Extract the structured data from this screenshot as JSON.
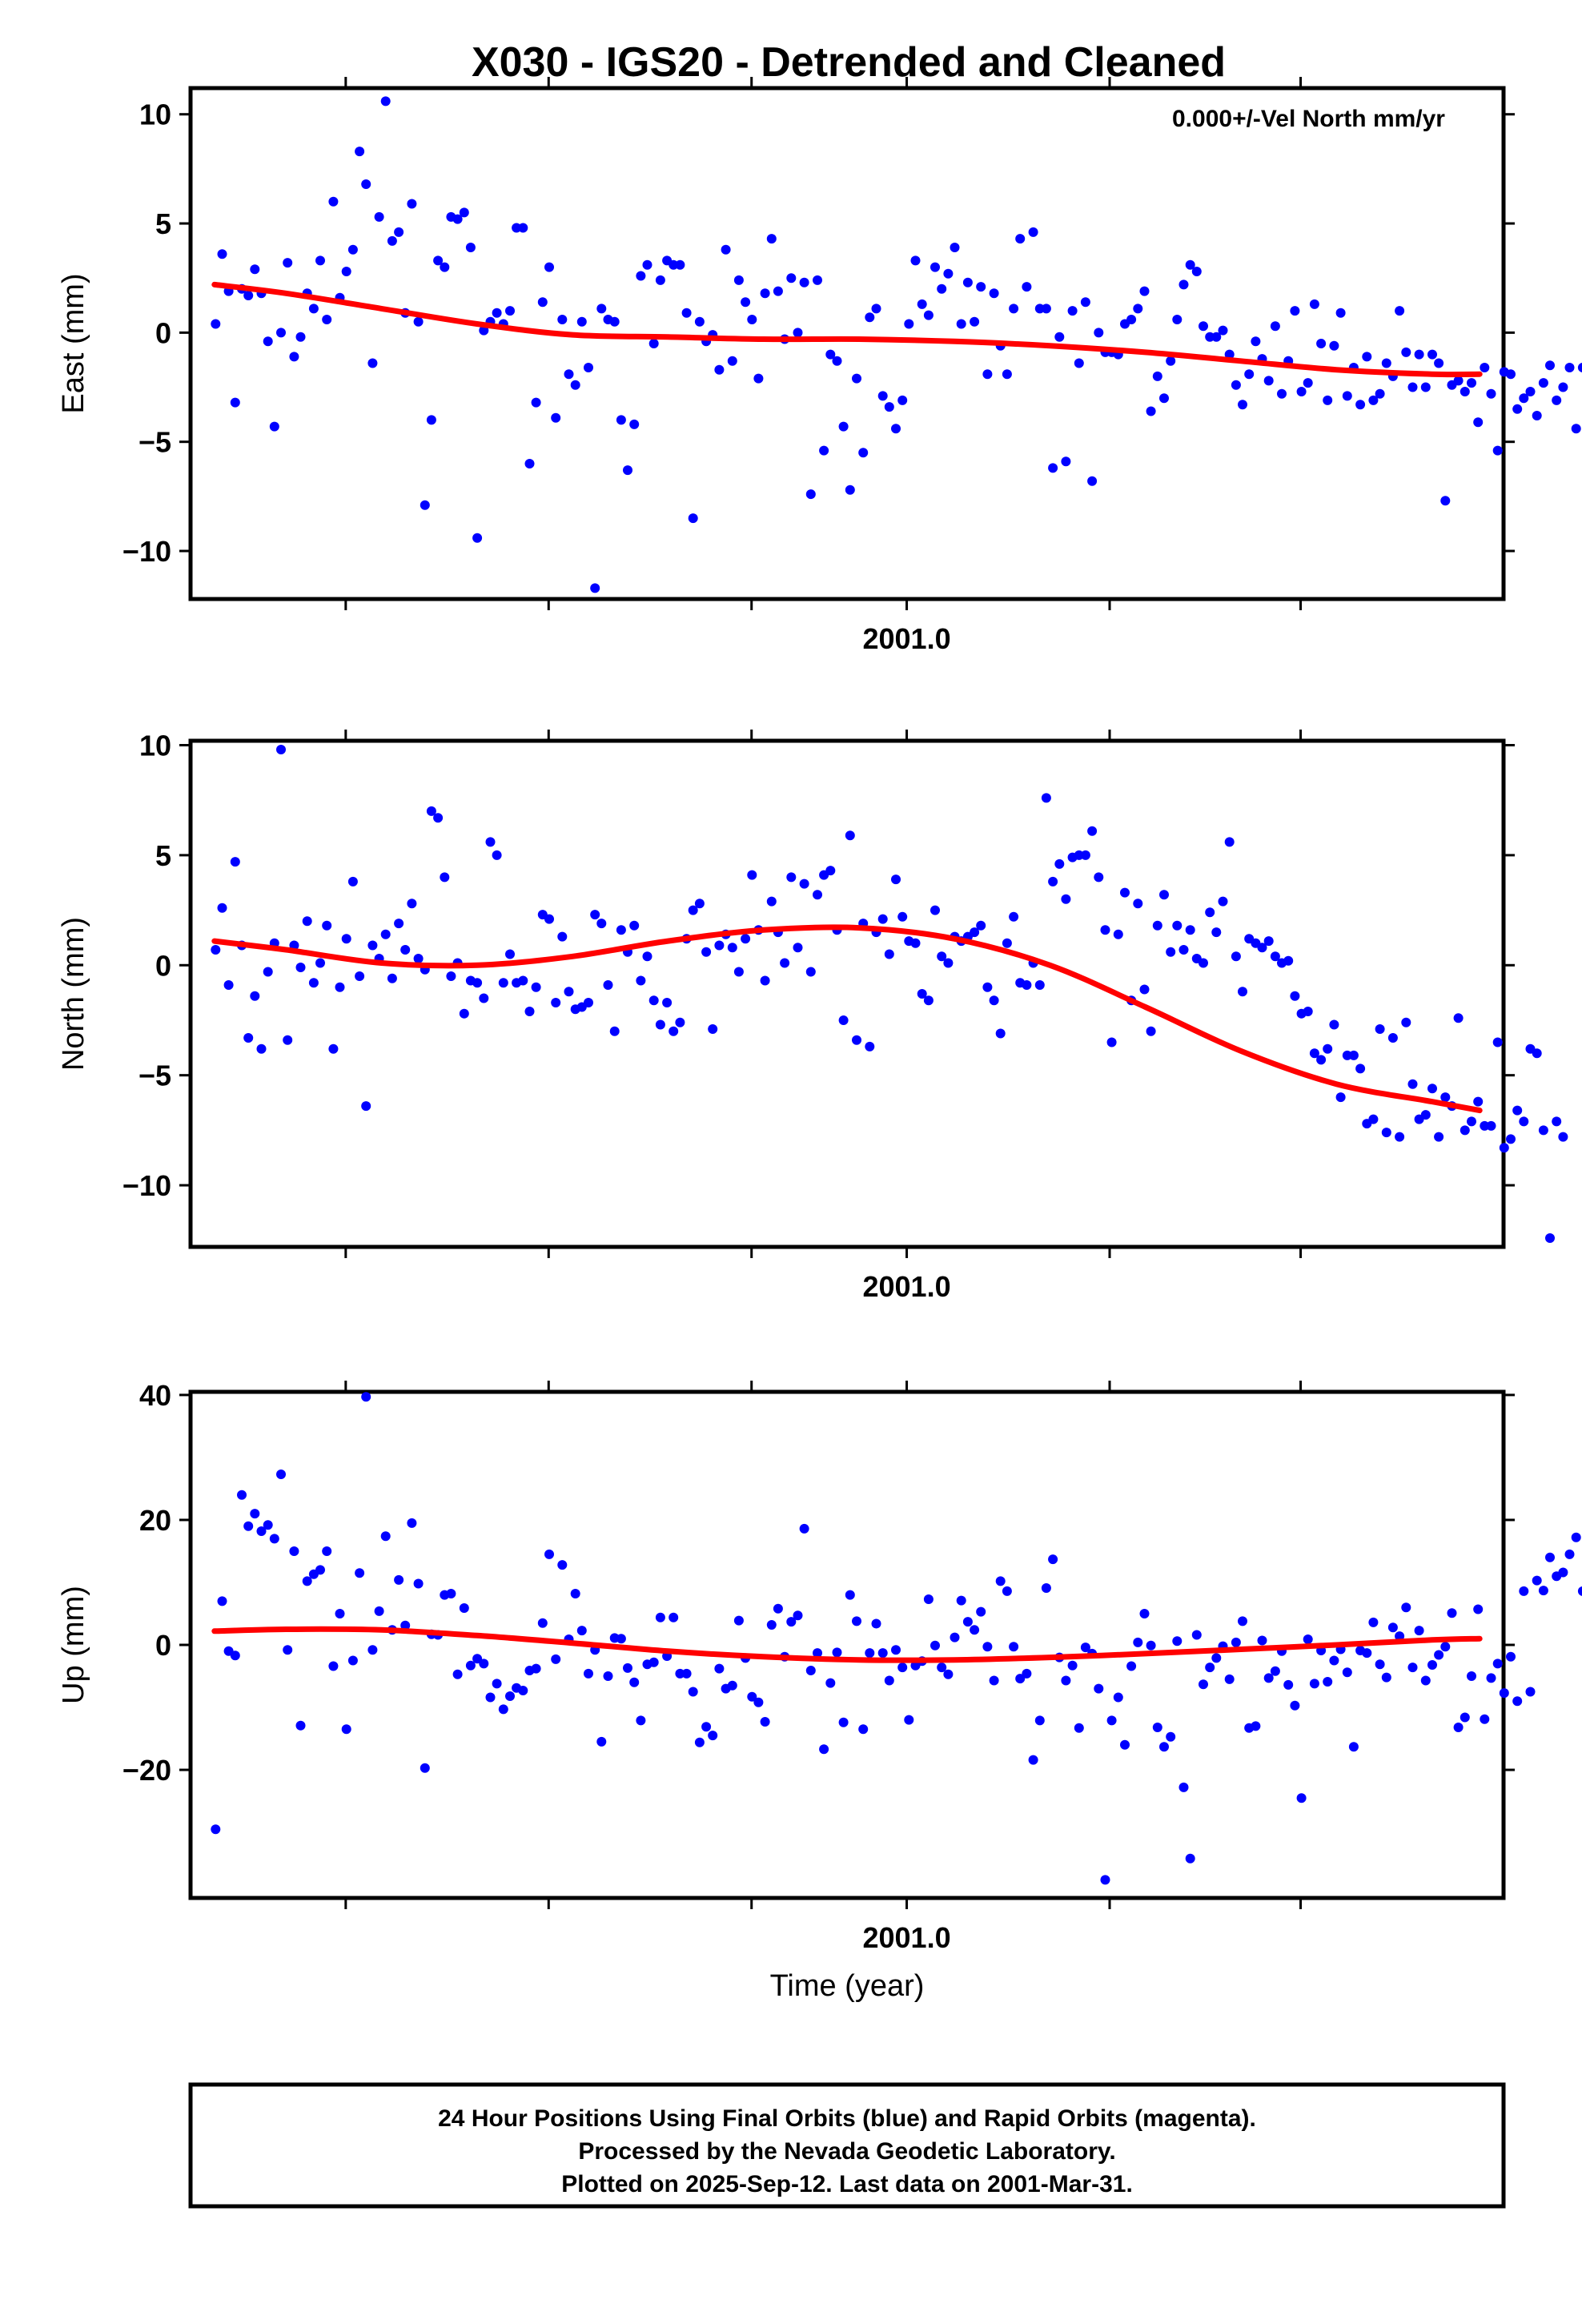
{
  "title": "X030 - IGS20 - Detrended and Cleaned",
  "xlabel": "Time (year)",
  "annotation": "0.000+/-Vel North mm/yr",
  "footer": {
    "line1": "24 Hour Positions Using Final Orbits (blue) and Rapid Orbits (magenta).",
    "line2": "Processed by the Nevada Geodetic Laboratory.",
    "line3": "Plotted on 2025-Sep-12. Last data on 2001-Mar-31."
  },
  "colors": {
    "points": "#0000ff",
    "fit": "#ff0000",
    "frame": "#000000"
  },
  "chart_data": [
    {
      "type": "scatter",
      "ylabel": "East (mm)",
      "xlim": [
        2000.7,
        2001.25
      ],
      "ylim": [
        -12.2,
        11.2
      ],
      "x_tick_labels": [
        {
          "value": 2001.0,
          "label": "2001.0"
        }
      ],
      "x_minor_ticks": [
        2000.765,
        2000.85,
        2000.935,
        2001.0,
        2001.085,
        2001.165
      ],
      "y_ticks": [
        {
          "value": 10,
          "label": "10"
        },
        {
          "value": 5,
          "label": "5"
        },
        {
          "value": 0,
          "label": "0"
        },
        {
          "value": -5,
          "label": "−5"
        },
        {
          "value": -10,
          "label": "−10"
        }
      ],
      "start_x": 2000.7105,
      "step_x": 0.00274,
      "points_y": [
        0.4,
        3.6,
        1.9,
        -3.2,
        2.0,
        1.7,
        2.9,
        1.8,
        -0.4,
        -4.3,
        0.0,
        3.2,
        -1.1,
        -0.2,
        1.8,
        1.1,
        3.3,
        0.6,
        6.0,
        1.6,
        2.8,
        3.8,
        8.3,
        6.8,
        -1.4,
        5.3,
        10.6,
        4.2,
        4.6,
        0.9,
        5.9,
        0.5,
        -7.9,
        -4.0,
        3.3,
        3.0,
        5.3,
        5.2,
        5.5,
        3.9,
        -9.4,
        0.1,
        0.5,
        0.9,
        0.4,
        1.0,
        4.8,
        4.8,
        -6.0,
        -3.2,
        1.4,
        3.0,
        -3.9,
        0.6,
        -1.9,
        -2.4,
        0.5,
        -1.6,
        -11.7,
        1.1,
        0.6,
        0.5,
        -4.0,
        -6.3,
        -4.2,
        2.6,
        3.1,
        -0.5,
        2.4,
        3.3,
        3.1,
        3.1,
        0.9,
        -8.5,
        0.5,
        -0.4,
        -0.1,
        -1.7,
        3.8,
        -1.3,
        2.4,
        1.4,
        0.6,
        -2.1,
        1.8,
        4.3,
        1.9,
        -0.3,
        2.5,
        0.0,
        2.3,
        -7.4,
        2.4,
        -5.4,
        -1.0,
        -1.3,
        -4.3,
        -7.2,
        -2.1,
        -5.5,
        0.7,
        1.1,
        -2.9,
        -3.4,
        -4.4,
        -3.1,
        0.4,
        3.3,
        1.3,
        0.8,
        3.0,
        2.0,
        2.7,
        3.9,
        0.4,
        2.3,
        0.5,
        2.1,
        -1.9,
        1.8,
        -0.6,
        -1.9,
        1.1,
        4.3,
        2.1,
        4.6,
        1.1,
        1.1,
        -6.2,
        -0.2,
        -5.9,
        1.0,
        -1.4,
        1.4,
        -6.8,
        0.0,
        -0.9,
        -0.9,
        -1.0,
        0.4,
        0.6,
        1.1,
        1.9,
        -3.6,
        -2.0,
        -3.0,
        -1.3,
        0.6,
        2.2,
        3.1,
        2.8,
        0.3,
        -0.2,
        -0.2,
        0.1,
        -1.0,
        -2.4,
        -3.3,
        -1.9,
        -0.4,
        -1.2,
        -2.2,
        0.3,
        -2.8,
        -1.3,
        1.0,
        -2.7,
        -2.3,
        1.3,
        -0.5,
        -3.1,
        -0.6,
        0.9,
        -2.9,
        -1.6,
        -3.3,
        -1.1,
        -3.1,
        -2.8,
        -1.4,
        -2.0,
        1.0,
        -0.9,
        -2.5,
        -1.0,
        -2.5,
        -1.0,
        -1.4,
        -7.7,
        -2.4,
        -2.2,
        -2.7,
        -2.3,
        -4.1,
        -1.6,
        -2.8,
        -5.4,
        -1.8,
        -1.9,
        -3.5,
        -3.0,
        -2.7,
        -3.8,
        -2.3,
        -1.5,
        -3.1,
        -2.5,
        -1.6,
        -4.4,
        -1.6,
        -2.1,
        0.1,
        0.3,
        0.8,
        1.4,
        -2.8,
        0.9,
        2.3,
        -0.3,
        -1.3,
        -1.2
      ],
      "fit": {
        "x": [
          2000.71,
          2000.74,
          2000.78,
          2000.82,
          2000.86,
          2000.9,
          2000.94,
          2000.98,
          2001.02,
          2001.06,
          2001.1,
          2001.14,
          2001.18,
          2001.22,
          2001.24
        ],
        "y": [
          2.2,
          1.8,
          1.1,
          0.4,
          -0.1,
          -0.2,
          -0.3,
          -0.3,
          -0.4,
          -0.6,
          -0.9,
          -1.3,
          -1.7,
          -1.9,
          -1.9
        ]
      }
    },
    {
      "type": "scatter",
      "ylabel": "North (mm)",
      "xlim": [
        2000.7,
        2001.25
      ],
      "ylim": [
        -12.8,
        10.2
      ],
      "x_tick_labels": [
        {
          "value": 2001.0,
          "label": "2001.0"
        }
      ],
      "x_minor_ticks": [
        2000.765,
        2000.85,
        2000.935,
        2001.0,
        2001.085,
        2001.165
      ],
      "y_ticks": [
        {
          "value": 10,
          "label": "10"
        },
        {
          "value": 5,
          "label": "5"
        },
        {
          "value": 0,
          "label": "0"
        },
        {
          "value": -5,
          "label": "−5"
        },
        {
          "value": -10,
          "label": "−10"
        }
      ],
      "start_x": 2000.7105,
      "step_x": 0.00274,
      "points_y": [
        0.7,
        2.6,
        -0.9,
        4.7,
        0.9,
        -3.3,
        -1.4,
        -3.8,
        -0.3,
        1.0,
        9.8,
        -3.4,
        0.9,
        -0.1,
        2.0,
        -0.8,
        0.1,
        1.8,
        -3.8,
        -1.0,
        1.2,
        3.8,
        -0.5,
        -6.4,
        0.9,
        0.3,
        1.4,
        -0.6,
        1.9,
        0.7,
        2.8,
        0.3,
        -0.2,
        7.0,
        6.7,
        4.0,
        -0.5,
        0.1,
        -2.2,
        -0.7,
        -0.8,
        -1.5,
        5.6,
        5.0,
        -0.8,
        0.5,
        -0.8,
        -0.7,
        -2.1,
        -1.0,
        2.3,
        2.1,
        -1.7,
        1.3,
        -1.2,
        -2.0,
        -1.9,
        -1.7,
        2.3,
        1.9,
        -0.9,
        -3.0,
        1.6,
        0.6,
        1.8,
        -0.7,
        0.4,
        -1.6,
        -2.7,
        -1.7,
        -3.0,
        -2.6,
        1.2,
        2.5,
        2.8,
        0.6,
        -2.9,
        0.9,
        1.4,
        0.8,
        -0.3,
        1.2,
        4.1,
        1.6,
        -0.7,
        2.9,
        1.5,
        0.1,
        4.0,
        0.8,
        3.7,
        -0.3,
        3.2,
        4.1,
        4.3,
        1.6,
        -2.5,
        5.9,
        -3.4,
        1.9,
        -3.7,
        1.5,
        2.1,
        0.5,
        3.9,
        2.2,
        1.1,
        1.0,
        -1.3,
        -1.6,
        2.5,
        0.4,
        0.1,
        1.3,
        1.1,
        1.3,
        1.5,
        1.8,
        -1.0,
        -1.6,
        -3.1,
        1.0,
        2.2,
        -0.8,
        -0.9,
        0.1,
        -0.9,
        7.6,
        3.8,
        4.6,
        3.0,
        4.9,
        5.0,
        5.0,
        6.1,
        4.0,
        1.6,
        -3.5,
        1.4,
        3.3,
        -1.6,
        2.8,
        -1.1,
        -3.0,
        1.8,
        3.2,
        0.6,
        1.8,
        0.7,
        1.6,
        0.3,
        0.1,
        2.4,
        1.5,
        2.9,
        5.6,
        0.4,
        -1.2,
        1.2,
        1.0,
        0.8,
        1.1,
        0.4,
        0.1,
        0.2,
        -1.4,
        -2.2,
        -2.1,
        -4.0,
        -4.3,
        -3.8,
        -2.7,
        -6.0,
        -4.1,
        -4.1,
        -4.7,
        -7.2,
        -7.0,
        -2.9,
        -7.6,
        -3.3,
        -7.8,
        -2.6,
        -5.4,
        -7.0,
        -6.8,
        -5.6,
        -7.8,
        -6.0,
        -6.4,
        -2.4,
        -7.5,
        -7.1,
        -6.2,
        -7.3,
        -7.3,
        -3.5,
        -8.3,
        -7.9,
        -6.6,
        -7.1,
        -3.8,
        -4.0,
        -7.5,
        -12.4,
        -7.1,
        -7.8
      ],
      "fit": {
        "x": [
          2000.71,
          2000.74,
          2000.78,
          2000.82,
          2000.86,
          2000.9,
          2000.94,
          2000.98,
          2001.02,
          2001.06,
          2001.1,
          2001.14,
          2001.18,
          2001.22,
          2001.24
        ],
        "y": [
          1.1,
          0.7,
          0.1,
          0.0,
          0.4,
          1.1,
          1.6,
          1.7,
          1.2,
          0.0,
          -1.9,
          -3.9,
          -5.4,
          -6.2,
          -6.6
        ]
      }
    },
    {
      "type": "scatter",
      "ylabel": "Up (mm)",
      "xlim": [
        2000.7,
        2001.25
      ],
      "ylim": [
        -40.5,
        40.5
      ],
      "x_tick_labels": [
        {
          "value": 2001.0,
          "label": "2001.0"
        }
      ],
      "x_minor_ticks": [
        2000.765,
        2000.85,
        2000.935,
        2001.0,
        2001.085,
        2001.165
      ],
      "y_ticks": [
        {
          "value": 40,
          "label": "40"
        },
        {
          "value": 20,
          "label": "20"
        },
        {
          "value": 0,
          "label": "0"
        },
        {
          "value": -20,
          "label": "−20"
        }
      ],
      "start_x": 2000.7105,
      "step_x": 0.00274,
      "points_y": [
        -29.5,
        7.0,
        -1.0,
        -1.7,
        24.0,
        19.0,
        21.0,
        18.2,
        19.2,
        17.0,
        27.3,
        -0.8,
        15.0,
        -12.9,
        10.2,
        11.3,
        12.0,
        15.0,
        -3.4,
        5.0,
        -13.5,
        -2.5,
        11.5,
        39.7,
        -0.8,
        5.4,
        17.4,
        2.4,
        10.4,
        3.1,
        19.5,
        9.8,
        -19.7,
        1.7,
        1.6,
        8.0,
        8.2,
        -4.7,
        5.9,
        -3.3,
        -2.2,
        -3.0,
        -8.4,
        -6.2,
        -10.3,
        -8.2,
        -6.9,
        -7.3,
        -4.1,
        -3.8,
        3.5,
        14.5,
        -2.3,
        12.8,
        0.9,
        8.2,
        2.3,
        -4.6,
        -0.8,
        -15.5,
        -5.0,
        1.1,
        1.0,
        -3.7,
        -6.0,
        -12.1,
        -3.1,
        -2.8,
        4.4,
        -1.8,
        4.4,
        -4.6,
        -4.6,
        -7.5,
        -15.6,
        -13.1,
        -14.5,
        -3.8,
        -7.0,
        -6.5,
        3.9,
        -2.1,
        -8.3,
        -9.2,
        -12.3,
        3.2,
        5.8,
        -1.9,
        3.7,
        4.7,
        18.6,
        -4.1,
        -1.3,
        -16.7,
        -6.1,
        -1.2,
        -12.4,
        8.0,
        3.8,
        -13.5,
        -1.3,
        3.4,
        -1.3,
        -5.7,
        -0.8,
        -3.6,
        -12.0,
        -3.3,
        -2.6,
        7.3,
        -0.1,
        -3.6,
        -4.7,
        1.2,
        7.1,
        3.7,
        2.4,
        5.3,
        -0.3,
        -5.7,
        10.2,
        8.6,
        -0.3,
        -5.4,
        -4.6,
        -18.4,
        -12.1,
        9.1,
        13.7,
        -2.0,
        -5.7,
        -3.3,
        -13.3,
        -0.4,
        -1.4,
        -7.0,
        -37.6,
        -12.1,
        -8.4,
        -16.0,
        -3.4,
        0.4,
        5.0,
        -0.1,
        -13.2,
        -16.3,
        -14.7,
        0.6,
        -22.8,
        -34.2,
        1.6,
        -6.3,
        -3.6,
        -2.1,
        -0.2,
        -5.5,
        0.4,
        3.8,
        -13.3,
        -13.0,
        0.7,
        -5.3,
        -4.2,
        -1.0,
        -6.4,
        -9.7,
        -24.5,
        0.9,
        -6.2,
        -0.9,
        -5.9,
        -2.5,
        -0.7,
        -4.4,
        -16.3,
        -0.9,
        -1.3,
        3.6,
        -3.1,
        -5.2,
        2.8,
        1.4,
        6.0,
        -3.6,
        2.3,
        -5.7,
        -3.2,
        -1.6,
        -0.3,
        5.1,
        -13.2,
        -11.6,
        -5.0,
        5.7,
        -11.9,
        -5.3,
        -3.0,
        -7.7,
        -1.9,
        -9.0,
        8.6,
        -7.5,
        10.3,
        8.7,
        14.0,
        11.0,
        11.6,
        14.5,
        17.2,
        8.6,
        7.7,
        4.6,
        0.8,
        4.5,
        0.4
      ],
      "fit": {
        "x": [
          2000.71,
          2000.74,
          2000.78,
          2000.82,
          2000.86,
          2000.9,
          2000.94,
          2000.98,
          2001.02,
          2001.06,
          2001.1,
          2001.14,
          2001.18,
          2001.22,
          2001.24
        ],
        "y": [
          2.2,
          2.5,
          2.4,
          1.5,
          0.3,
          -1.0,
          -1.9,
          -2.4,
          -2.4,
          -2.0,
          -1.4,
          -0.7,
          0.0,
          0.8,
          1.0
        ]
      }
    }
  ]
}
